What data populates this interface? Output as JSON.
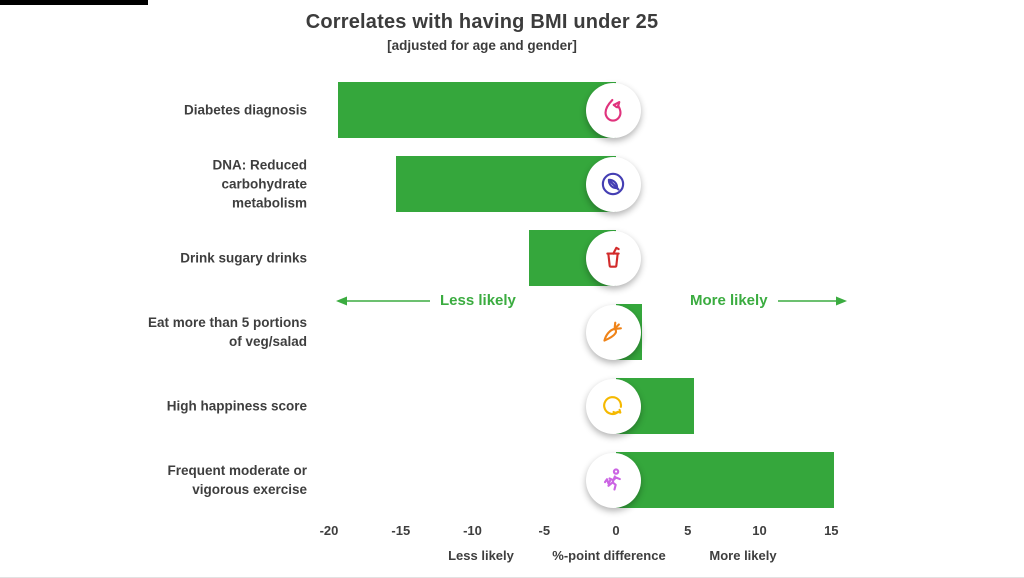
{
  "chart_data": {
    "type": "bar",
    "orientation": "horizontal",
    "title": "Correlates with having BMI under 25",
    "subtitle": "[adjusted for age and gender]",
    "xlabel": "%-point difference",
    "xlim": [
      -21.5,
      15.8
    ],
    "grid": false,
    "legend": "none",
    "bar_color": "#35A73C",
    "categories": [
      "Diabetes diagnosis",
      "DNA: Reduced carbohydrate metabolism",
      "Drink sugary drinks",
      "Eat more than 5 portions of veg/salad",
      "High happiness score",
      "Frequent moderate or vigorous exercise"
    ],
    "values": [
      -19.4,
      -15.3,
      -6.1,
      1.8,
      5.4,
      15.2
    ],
    "rows": [
      {
        "lines": [
          "Diabetes diagnosis"
        ],
        "value": -19.4,
        "icon": "diabetes-metabolism-icon",
        "icon_color": "#E0337D"
      },
      {
        "lines": [
          "DNA: Reduced",
          "carbohydrate",
          "metabolism"
        ],
        "value": -15.3,
        "icon": "no-carb-grain-icon",
        "icon_color": "#443EB3"
      },
      {
        "lines": [
          "Drink sugary drinks"
        ],
        "value": -6.1,
        "icon": "sugary-drink-cup-icon",
        "icon_color": "#D22B2B"
      },
      {
        "lines": [
          "Eat more than 5 portions",
          "of veg/salad"
        ],
        "value": 1.8,
        "icon": "carrot-icon",
        "icon_color": "#EF8318"
      },
      {
        "lines": [
          "High happiness score"
        ],
        "value": 5.4,
        "icon": "happy-face-icon",
        "icon_color": "#F5B901"
      },
      {
        "lines": [
          "Frequent moderate or",
          "vigorous exercise"
        ],
        "value": 15.2,
        "icon": "exercise-runner-icon",
        "icon_color": "#CB64E3"
      }
    ],
    "axis": {
      "ticks": [
        "-20",
        "-15",
        "-10",
        "-5",
        "0",
        "5",
        "10",
        "15"
      ],
      "tick_values": [
        -20,
        -15,
        -10,
        -5,
        0,
        5,
        10,
        15
      ],
      "captions": [
        "Less likely",
        "%-point difference",
        "More likely"
      ]
    }
  },
  "annotations": {
    "less_likely": "Less likely",
    "more_likely": "More likely"
  },
  "colors": {
    "bar_green": "#35A73C",
    "annotation_green": "#3BAC40",
    "text_dark": "#3E3E3E"
  }
}
